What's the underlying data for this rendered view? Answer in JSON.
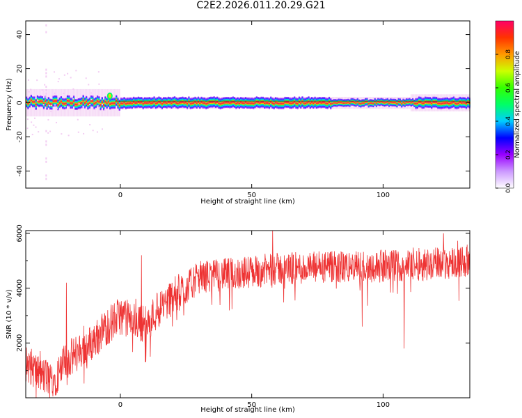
{
  "page_title": "C2E2.2026.011.20.29.G21",
  "chart_data": [
    {
      "type": "heatmap",
      "xlabel": "Height of straight line (km)",
      "ylabel": "Frequency (Hz)",
      "xlim": [
        -36,
        133
      ],
      "ylim": [
        -50,
        48
      ],
      "xticks": [
        0,
        50,
        100
      ],
      "yticks": [
        -40,
        -20,
        0,
        20,
        40
      ],
      "band_center_hz": 0,
      "band_halfwidth_hz": 3,
      "colorbar": {
        "label": "Normalized spectral amplitude",
        "range": [
          0.0,
          1.0
        ],
        "ticks": [
          "0.0",
          "0.2",
          "0.4",
          "0.6",
          "0.8"
        ]
      },
      "colormap": [
        "#f2ccf2",
        "#9933ff",
        "#3333ff",
        "#00ccff",
        "#00ff66",
        "#66ff00",
        "#ffcc00",
        "#ff3333",
        "#ff0099"
      ]
    },
    {
      "type": "line",
      "xlabel": "Height of straight line (km)",
      "ylabel": "SNR (10 * v/v)",
      "xlim": [
        -36,
        133
      ],
      "ylim": [
        0,
        6100
      ],
      "xticks": [
        0,
        50,
        100
      ],
      "yticks": [
        2000,
        4000,
        6000
      ],
      "color": "#ee3333",
      "envelope": {
        "x": [
          -36,
          -30,
          -25,
          -21,
          -17,
          -12,
          -5,
          0,
          5,
          10,
          15,
          20,
          25,
          30,
          40,
          50,
          60,
          80,
          100,
          120,
          133
        ],
        "y": [
          1300,
          800,
          700,
          1300,
          1600,
          1900,
          2600,
          3000,
          2800,
          2700,
          3300,
          3700,
          4000,
          4400,
          4500,
          4600,
          4700,
          4750,
          4800,
          4900,
          5000
        ]
      },
      "spikes": [
        {
          "x": -20.5,
          "y": 4200
        },
        {
          "x": 8,
          "y": 5200
        },
        {
          "x": 9.5,
          "y": 1300
        },
        {
          "x": 58,
          "y": 6100
        },
        {
          "x": 92,
          "y": 2600
        },
        {
          "x": 108,
          "y": 1800
        },
        {
          "x": 123,
          "y": 6000
        }
      ]
    }
  ]
}
